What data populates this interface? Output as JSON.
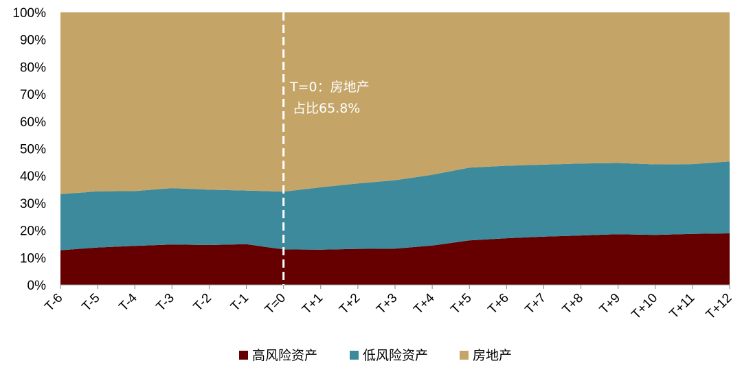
{
  "chart_data": {
    "type": "area",
    "stacked": true,
    "percent": true,
    "categories": [
      "T-6",
      "T-5",
      "T-4",
      "T-3",
      "T-2",
      "T-1",
      "T=0",
      "T+1",
      "T+2",
      "T+3",
      "T+4",
      "T+5",
      "T+6",
      "T+7",
      "T+8",
      "T+9",
      "T+10",
      "T+11",
      "T+12"
    ],
    "ylim": [
      0,
      100
    ],
    "yticks": [
      "0%",
      "10%",
      "20%",
      "30%",
      "40%",
      "50%",
      "60%",
      "70%",
      "80%",
      "90%",
      "100%"
    ],
    "series": [
      {
        "name": "高风险资产",
        "color": "#660000",
        "values": [
          12.7,
          13.7,
          14.3,
          14.8,
          14.6,
          14.9,
          13.0,
          12.9,
          13.2,
          13.3,
          14.4,
          16.3,
          17.1,
          17.7,
          18.1,
          18.6,
          18.3,
          18.7,
          18.9
        ]
      },
      {
        "name": "低风险资产",
        "color": "#3d8a9c",
        "values": [
          20.6,
          20.6,
          20.1,
          20.7,
          20.3,
          19.7,
          21.2,
          22.9,
          24.0,
          25.1,
          26.0,
          26.7,
          26.6,
          26.4,
          26.4,
          26.1,
          25.9,
          25.6,
          26.4
        ]
      },
      {
        "name": "房地产",
        "color": "#c5a567",
        "values": [
          66.7,
          65.7,
          65.6,
          64.5,
          65.1,
          65.4,
          65.8,
          64.2,
          62.8,
          61.6,
          59.6,
          57.0,
          56.3,
          55.9,
          55.5,
          55.3,
          55.8,
          55.7,
          54.7
        ]
      }
    ],
    "reference_line": {
      "category": "T=0",
      "style": "dashed",
      "color": "#ffffff"
    },
    "annotation": {
      "lines": [
        "T=0：房地产",
        "占比65.8%"
      ]
    },
    "legend": {
      "position": "bottom"
    },
    "grid": false
  }
}
